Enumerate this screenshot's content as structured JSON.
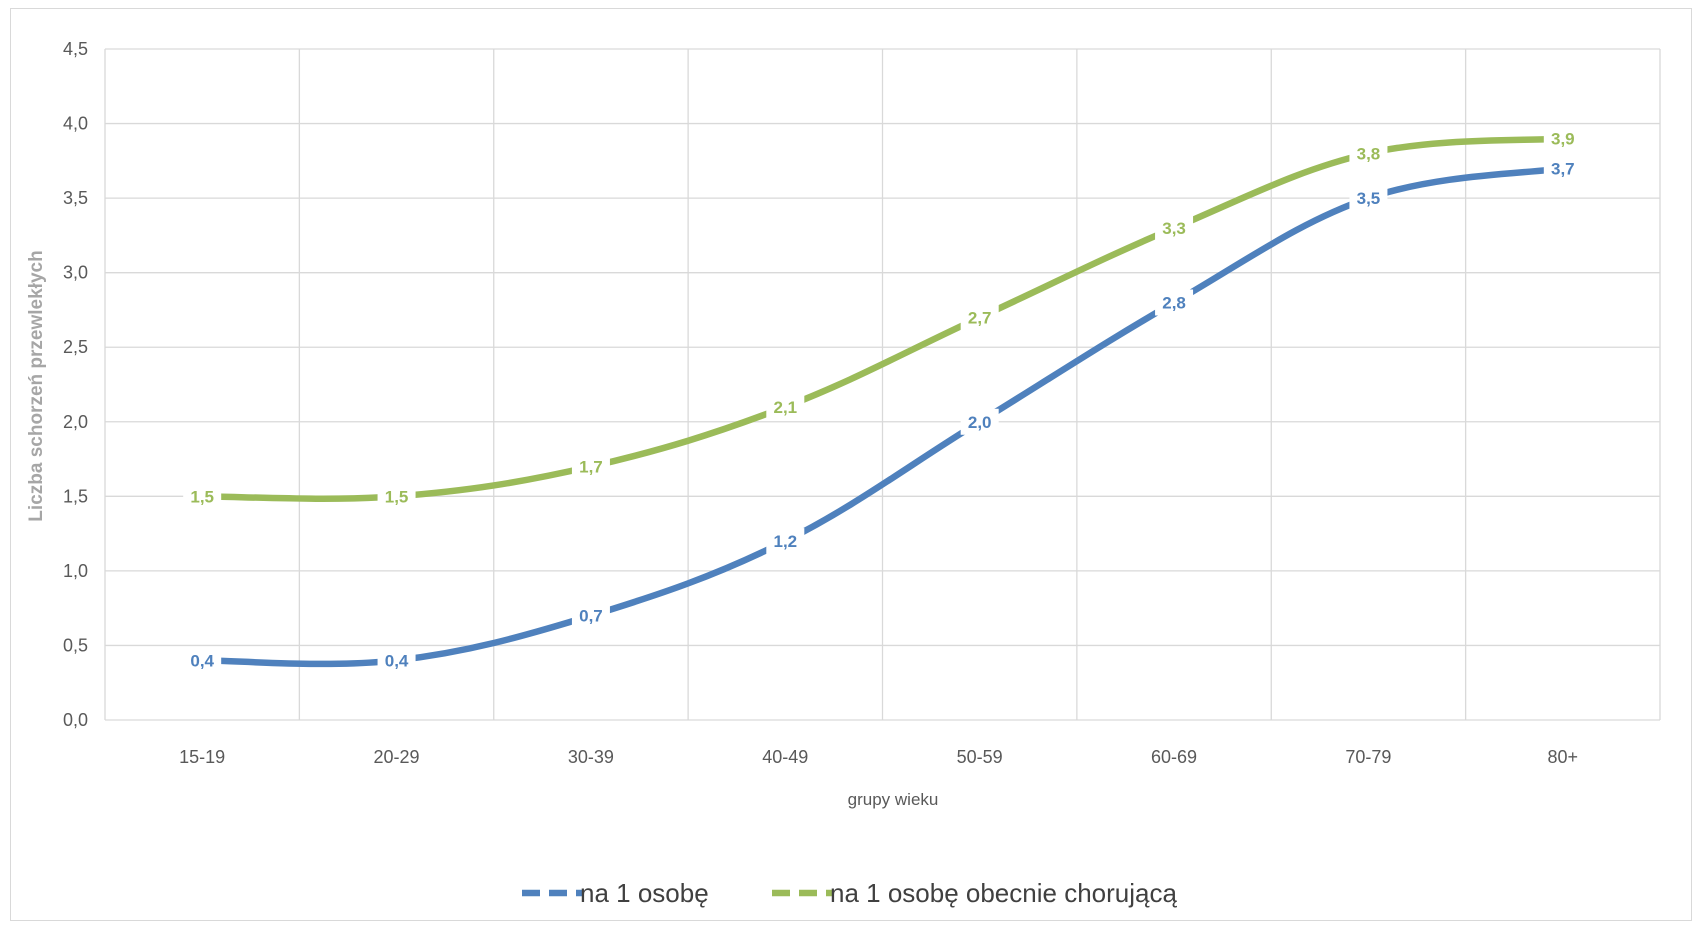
{
  "chart_data": {
    "type": "line",
    "title": "",
    "xlabel": "grupy wieku",
    "ylabel": "Liczba schorzeń przewlekłych",
    "categories": [
      "15-19",
      "20-29",
      "30-39",
      "40-49",
      "50-59",
      "60-69",
      "70-79",
      "80+"
    ],
    "ylim": [
      0,
      4.5
    ],
    "yticks": [
      "0,0",
      "0,5",
      "1,0",
      "1,5",
      "2,0",
      "2,5",
      "3,0",
      "3,5",
      "4,0",
      "4,5"
    ],
    "grid": true,
    "legend_position": "bottom",
    "series": [
      {
        "name": "na 1 osobę",
        "color": "#4f81bd",
        "values": [
          0.4,
          0.4,
          0.7,
          1.2,
          2.0,
          2.8,
          3.5,
          3.7
        ],
        "labels": [
          "0,4",
          "0,4",
          "0,7",
          "1,2",
          "2,0",
          "2,8",
          "3,5",
          "3,7"
        ]
      },
      {
        "name": "na 1 osobę obecnie chorującą",
        "color": "#9bbb59",
        "values": [
          1.5,
          1.5,
          1.7,
          2.1,
          2.7,
          3.3,
          3.8,
          3.9
        ],
        "labels": [
          "1,5",
          "1,5",
          "1,7",
          "2,1",
          "2,7",
          "3,3",
          "3,8",
          "3,9"
        ]
      }
    ]
  }
}
